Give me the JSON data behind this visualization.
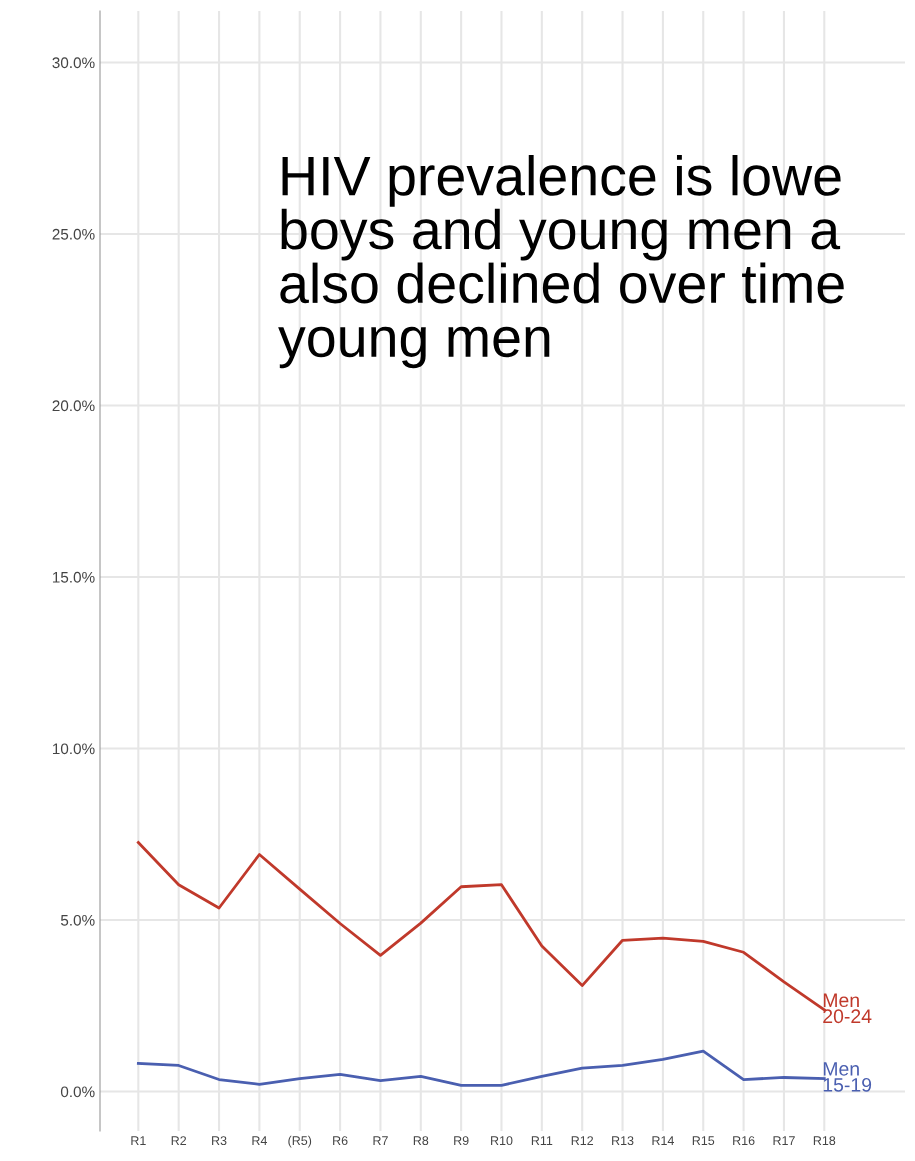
{
  "chart_data": {
    "type": "line",
    "categories": [
      "R1",
      "R2",
      "R3",
      "R4",
      "(R5)",
      "R6",
      "R7",
      "R8",
      "R9",
      "R10",
      "R11",
      "R12",
      "R13",
      "R14",
      "R15",
      "R16",
      "R17",
      "R18"
    ],
    "series": [
      {
        "name": "Men\n20-24",
        "color": "#c0392b",
        "values": [
          7.26,
          6.03,
          5.35,
          6.91,
          5.9,
          4.9,
          3.97,
          4.91,
          5.97,
          6.03,
          4.24,
          3.09,
          4.41,
          4.47,
          4.38,
          4.06,
          3.2,
          2.38
        ]
      },
      {
        "name": "Men\n15-19",
        "color": "#4a5fb0",
        "values": [
          0.82,
          0.76,
          0.35,
          0.21,
          0.38,
          0.5,
          0.32,
          0.44,
          0.18,
          0.18,
          0.44,
          0.68,
          0.76,
          0.94,
          1.18,
          0.35,
          0.41,
          0.38
        ]
      }
    ],
    "ylim": [
      -1.15,
      31.5
    ],
    "yticks": [
      {
        "value": 0,
        "label": "0.0%"
      },
      {
        "value": 5,
        "label": "5.0%"
      },
      {
        "value": 10,
        "label": "10.0%"
      },
      {
        "value": 15,
        "label": "15.0%"
      },
      {
        "value": 20,
        "label": "20.0%"
      },
      {
        "value": 25,
        "label": "25.0%"
      },
      {
        "value": 30,
        "label": "30.0%"
      }
    ],
    "grid": true,
    "marker": "none",
    "line_style": "solid",
    "annotations": [
      "HIV prevalence is lowe\nboys and young men a\nalso declined over time\nyoung men"
    ]
  }
}
